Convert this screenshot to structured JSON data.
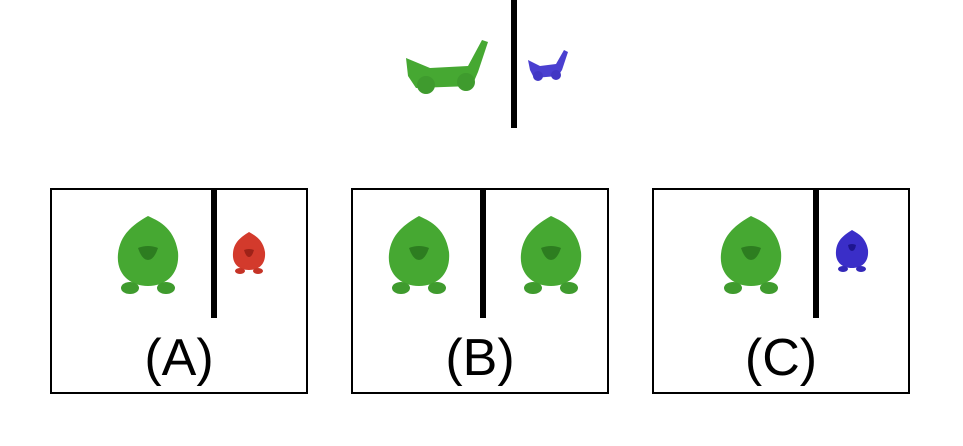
{
  "prompt": {
    "left_item": "green-cart-icon",
    "right_item": "blue-cart-icon",
    "colors": {
      "green": "#46a832",
      "blue": "#4a3fd0"
    }
  },
  "options": [
    {
      "label": "(A)",
      "left": "green-blob-icon",
      "right": "red-blob-small-icon",
      "right_color": "#d33a2c"
    },
    {
      "label": "(B)",
      "left": "green-blob-icon",
      "right": "green-blob-icon",
      "right_color": "#46a832"
    },
    {
      "label": "(C)",
      "left": "green-blob-icon",
      "right": "blue-blob-small-icon",
      "right_color": "#3a2ec8"
    }
  ]
}
